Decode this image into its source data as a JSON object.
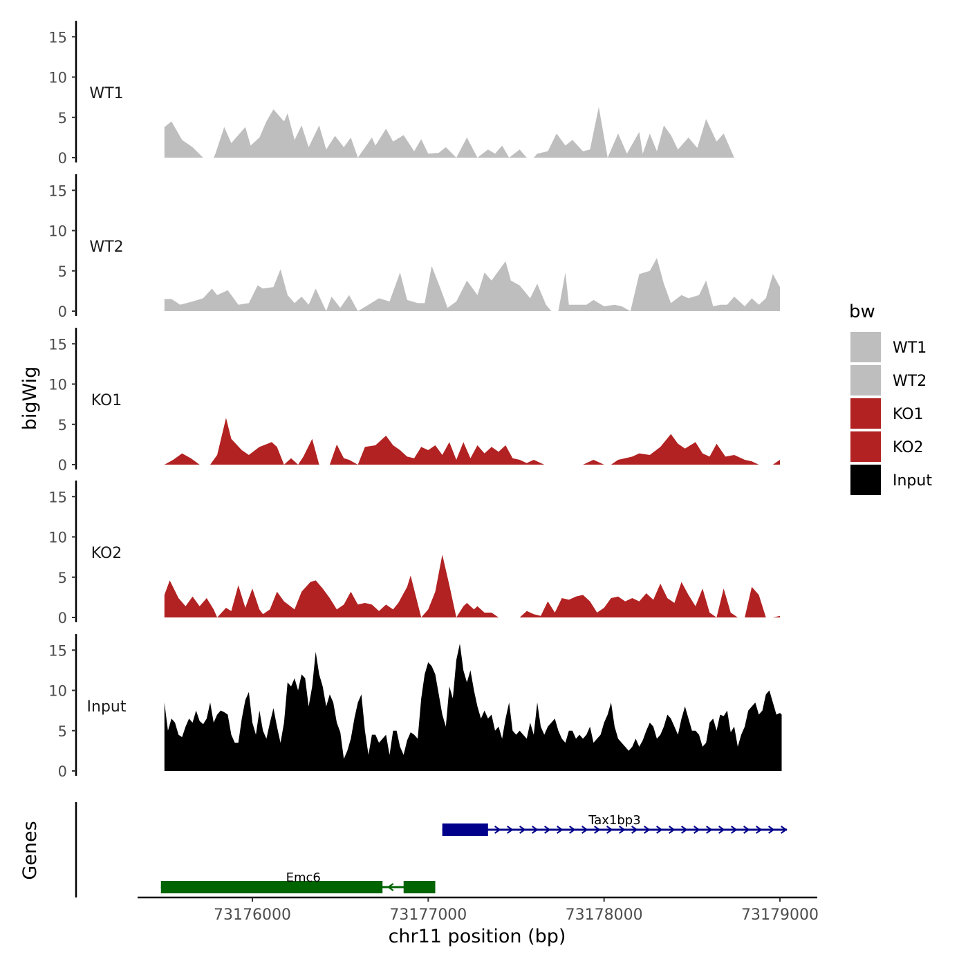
{
  "chart_data": {
    "type": "area",
    "description_axis": {
      "xlabel": "chr11 position (bp)",
      "xlim": [
        73175300,
        73179200
      ],
      "xticks": [
        73176000,
        73177000,
        73178000,
        73179000
      ],
      "xtick_labels": [
        "73176000",
        "73177000",
        "73178000",
        "73179000"
      ]
    },
    "ylabel": "bigWig",
    "ylim": [
      0,
      16.5
    ],
    "yticks": [
      0,
      5,
      10,
      15
    ],
    "ytick_labels": [
      "0",
      "5",
      "10",
      "15"
    ],
    "legend": {
      "title": "bw",
      "position": "right",
      "entries": [
        {
          "label": "WT1",
          "color": "#bebebe"
        },
        {
          "label": "WT2",
          "color": "#bebebe"
        },
        {
          "label": "KO1",
          "color": "#b22222"
        },
        {
          "label": "KO2",
          "color": "#b22222"
        },
        {
          "label": "Input",
          "color": "#000000"
        }
      ]
    },
    "series": [
      {
        "name": "WT1",
        "color": "#bebebe",
        "x": [
          73175500,
          73175540,
          73175600,
          73175660,
          73175720,
          73175780,
          73175790,
          73175840,
          73175880,
          73175960,
          73175990,
          73176040,
          73176080,
          73176120,
          73176180,
          73176200,
          73176240,
          73176280,
          73176320,
          73176380,
          73176420,
          73176470,
          73176520,
          73176560,
          73176600,
          73176680,
          73176700,
          73176760,
          73176800,
          73176860,
          73176920,
          73176960,
          73177000,
          73177060,
          73177100,
          73177160,
          73177220,
          73177280,
          73177340,
          73177380,
          73177420,
          73177460,
          73177520,
          73177560,
          73177600,
          73177620,
          73177680,
          73177730,
          73177780,
          73177820,
          73177880,
          73177920,
          73177970,
          73178020,
          73178080,
          73178130,
          73178200,
          73178220,
          73178260,
          73178300,
          73178340,
          73178380,
          73178420,
          73178480,
          73178530,
          73178580,
          73178640,
          73178680,
          73178740,
          73178800,
          73178860,
          73178900,
          73178960,
          73179000
        ],
        "values": [
          3.8,
          4.5,
          2.2,
          1.3,
          0,
          0,
          0.5,
          3.8,
          1.8,
          3.8,
          1.5,
          2.5,
          4.5,
          6.0,
          4.5,
          5.5,
          2.2,
          4.0,
          1.3,
          4.0,
          1.0,
          2.7,
          1.3,
          2.5,
          0,
          2.5,
          1.5,
          3.6,
          2.0,
          2.8,
          0.8,
          2.3,
          0.5,
          0.6,
          1.3,
          0,
          2.5,
          0,
          1.0,
          0.5,
          1.5,
          0,
          1.0,
          0,
          0,
          0.5,
          0.8,
          3.0,
          1.5,
          2.2,
          0.8,
          1.0,
          6.3,
          0,
          3.0,
          0.5,
          3.2,
          0.5,
          3.0,
          0.8,
          4.0,
          2.8,
          1.0,
          2.5,
          1.2,
          4.8,
          2.0,
          3.0,
          0,
          0,
          0,
          0,
          0,
          0
        ]
      },
      {
        "name": "WT2",
        "color": "#bebebe",
        "x": [
          73175500,
          73175540,
          73175590,
          73175660,
          73175720,
          73175770,
          73175800,
          73175860,
          73175920,
          73175980,
          73176030,
          73176060,
          73176120,
          73176160,
          73176200,
          73176240,
          73176280,
          73176320,
          73176360,
          73176420,
          73176450,
          73176500,
          73176550,
          73176600,
          73176660,
          73176720,
          73176780,
          73176840,
          73176880,
          73176940,
          73176980,
          73177020,
          73177070,
          73177110,
          73177160,
          73177220,
          73177280,
          73177320,
          73177360,
          73177440,
          73177470,
          73177520,
          73177580,
          73177620,
          73177670,
          73177700,
          73177740,
          73177780,
          73177800,
          73177860,
          73177900,
          73177940,
          73178000,
          73178060,
          73178100,
          73178150,
          73178200,
          73178260,
          73178300,
          73178340,
          73178380,
          73178440,
          73178480,
          73178540,
          73178580,
          73178620,
          73178660,
          73178700,
          73178740,
          73178800,
          73178840,
          73178880,
          73178920,
          73178960,
          73179000
        ],
        "values": [
          1.5,
          1.5,
          0.8,
          1.2,
          1.6,
          2.8,
          2.0,
          2.6,
          0.8,
          1.0,
          3.2,
          2.8,
          3.0,
          5.2,
          2.0,
          1.0,
          1.8,
          0.8,
          2.8,
          0,
          1.8,
          0.4,
          2.0,
          0,
          0.8,
          1.6,
          1.2,
          4.8,
          1.4,
          1.0,
          1.0,
          5.6,
          2.8,
          0.4,
          1.2,
          3.8,
          2.0,
          4.8,
          3.8,
          6.2,
          3.8,
          3.2,
          1.6,
          3.4,
          0.8,
          0,
          0,
          4.8,
          0.8,
          0.8,
          0.8,
          1.4,
          0.6,
          0.8,
          0.6,
          0,
          4.6,
          5.0,
          6.6,
          3.4,
          1.0,
          2.0,
          1.6,
          2.0,
          3.8,
          0.6,
          0.8,
          0.8,
          1.8,
          0.6,
          1.6,
          0.8,
          1.6,
          4.6,
          3.0
        ]
      },
      {
        "name": "KO1",
        "color": "#b22222",
        "x": [
          73175500,
          73175550,
          73175600,
          73175650,
          73175700,
          73175760,
          73175800,
          73175850,
          73175880,
          73175940,
          73175980,
          73176040,
          73176110,
          73176140,
          73176180,
          73176220,
          73176260,
          73176290,
          73176340,
          73176380,
          73176440,
          73176480,
          73176520,
          73176550,
          73176600,
          73176640,
          73176700,
          73176760,
          73176800,
          73176840,
          73176880,
          73176920,
          73176960,
          73177000,
          73177040,
          73177080,
          73177120,
          73177160,
          73177200,
          73177240,
          73177280,
          73177320,
          73177360,
          73177400,
          73177440,
          73177480,
          73177520,
          73177560,
          73177600,
          73177660,
          73177700,
          73177740,
          73177800,
          73177880,
          73177940,
          73178000,
          73178040,
          73178080,
          73178120,
          73178160,
          73178200,
          73178260,
          73178320,
          73178380,
          73178420,
          73178460,
          73178520,
          73178560,
          73178600,
          73178640,
          73178690,
          73178740,
          73178800,
          73178840,
          73178880,
          73178920,
          73178960,
          73179000
        ],
        "values": [
          0,
          0.6,
          1.4,
          0.8,
          0,
          0,
          1.2,
          5.8,
          3.2,
          1.8,
          1.2,
          2.2,
          2.8,
          2.2,
          0,
          0.8,
          0,
          1.0,
          3.2,
          0,
          0,
          2.5,
          0.8,
          0.6,
          0,
          2.2,
          2.4,
          3.6,
          2.4,
          1.8,
          1.0,
          0.8,
          2.2,
          1.8,
          2.4,
          1.2,
          2.8,
          0.6,
          2.8,
          0.8,
          2.4,
          1.4,
          2.2,
          1.6,
          2.4,
          0.8,
          0.6,
          0.2,
          0.6,
          0,
          0,
          0,
          0,
          0,
          0.6,
          0,
          0,
          0.6,
          0.8,
          1.0,
          1.4,
          1.2,
          2.2,
          3.8,
          2.6,
          2.0,
          2.8,
          1.4,
          1.0,
          2.6,
          1.0,
          1.2,
          0.6,
          0.4,
          0,
          0,
          0,
          0.6
        ]
      },
      {
        "name": "KO2",
        "color": "#b22222",
        "x": [
          73175500,
          73175530,
          73175580,
          73175620,
          73175660,
          73175700,
          73175740,
          73175780,
          73175800,
          73175850,
          73175880,
          73175920,
          73175960,
          73176000,
          73176040,
          73176060,
          73176100,
          73176140,
          73176180,
          73176240,
          73176280,
          73176330,
          73176360,
          73176400,
          73176440,
          73176480,
          73176520,
          73176560,
          73176600,
          73176640,
          73176680,
          73176720,
          73176760,
          73176800,
          73176830,
          73176880,
          73176900,
          73176960,
          73177000,
          73177040,
          73177080,
          73177120,
          73177160,
          73177200,
          73177220,
          73177260,
          73177280,
          73177320,
          73177360,
          73177400,
          73177440,
          73177480,
          73177520,
          73177560,
          73177600,
          73177640,
          73177680,
          73177720,
          73177760,
          73177800,
          73177840,
          73177880,
          73177920,
          73177960,
          73178000,
          73178040,
          73178080,
          73178120,
          73178160,
          73178200,
          73178240,
          73178280,
          73178320,
          73178360,
          73178400,
          73178440,
          73178480,
          73178520,
          73178560,
          73178600,
          73178640,
          73178680,
          73178720,
          73178760,
          73178800,
          73178840,
          73178880,
          73178920,
          73178960,
          73179000
        ],
        "values": [
          2.8,
          4.6,
          2.4,
          1.4,
          2.6,
          1.4,
          2.4,
          1.0,
          0,
          1.2,
          0.8,
          4.0,
          1.2,
          3.6,
          1.0,
          0.4,
          1.0,
          3.2,
          2.0,
          1.0,
          3.2,
          4.4,
          4.6,
          3.6,
          2.4,
          1.0,
          1.6,
          3.2,
          1.6,
          1.8,
          1.6,
          0.8,
          1.6,
          1.0,
          1.8,
          3.8,
          5.2,
          0,
          1.0,
          3.2,
          7.8,
          4.0,
          0,
          1.4,
          1.8,
          1.0,
          1.4,
          0.6,
          0.6,
          0,
          0,
          0,
          0,
          0.8,
          0.4,
          0.2,
          2.0,
          0.6,
          2.4,
          2.2,
          2.6,
          2.8,
          2.0,
          0.6,
          1.2,
          2.4,
          2.6,
          2.0,
          2.4,
          2.0,
          3.0,
          2.2,
          4.2,
          2.4,
          1.8,
          4.4,
          2.8,
          1.4,
          3.6,
          0.6,
          0,
          3.6,
          0.6,
          0,
          0,
          3.8,
          2.8,
          0,
          0,
          0.2
        ]
      },
      {
        "name": "Input",
        "color": "#000000",
        "x": [
          73175500,
          73175520,
          73175540,
          73175560,
          73175580,
          73175600,
          73175620,
          73175640,
          73175660,
          73175680,
          73175700,
          73175720,
          73175740,
          73175760,
          73175780,
          73175800,
          73175820,
          73175840,
          73175860,
          73175880,
          73175900,
          73175920,
          73175940,
          73175960,
          73175980,
          73176000,
          73176020,
          73176040,
          73176060,
          73176080,
          73176100,
          73176120,
          73176140,
          73176160,
          73176180,
          73176200,
          73176220,
          73176240,
          73176260,
          73176280,
          73176300,
          73176320,
          73176340,
          73176360,
          73176380,
          73176400,
          73176420,
          73176440,
          73176460,
          73176480,
          73176500,
          73176520,
          73176540,
          73176560,
          73176580,
          73176600,
          73176620,
          73176640,
          73176660,
          73176680,
          73176700,
          73176720,
          73176740,
          73176760,
          73176780,
          73176800,
          73176820,
          73176840,
          73176860,
          73176880,
          73176900,
          73176920,
          73176940,
          73176960,
          73176980,
          73177000,
          73177020,
          73177040,
          73177060,
          73177080,
          73177100,
          73177120,
          73177140,
          73177160,
          73177180,
          73177200,
          73177220,
          73177240,
          73177260,
          73177280,
          73177300,
          73177320,
          73177340,
          73177360,
          73177380,
          73177400,
          73177420,
          73177440,
          73177460,
          73177480,
          73177500,
          73177520,
          73177540,
          73177560,
          73177580,
          73177600,
          73177620,
          73177640,
          73177660,
          73177680,
          73177700,
          73177720,
          73177740,
          73177760,
          73177780,
          73177800,
          73177820,
          73177840,
          73177860,
          73177880,
          73177900,
          73177920,
          73177940,
          73177960,
          73177980,
          73178000,
          73178020,
          73178040,
          73178060,
          73178080,
          73178100,
          73178120,
          73178140,
          73178160,
          73178180,
          73178200,
          73178220,
          73178240,
          73178260,
          73178280,
          73178300,
          73178320,
          73178340,
          73178360,
          73178380,
          73178400,
          73178420,
          73178440,
          73178460,
          73178480,
          73178500,
          73178520,
          73178540,
          73178560,
          73178580,
          73178600,
          73178620,
          73178640,
          73178660,
          73178680,
          73178700,
          73178720,
          73178740,
          73178760,
          73178780,
          73178800,
          73178820,
          73178840,
          73178860,
          73178880,
          73178900,
          73178920,
          73178940,
          73178960,
          73178980,
          73179000,
          73179010
        ],
        "values": [
          8.5,
          5.0,
          6.5,
          6.0,
          4.5,
          4.2,
          5.5,
          6.5,
          6.0,
          7.5,
          6.2,
          5.8,
          6.5,
          8.5,
          6.0,
          7.0,
          7.5,
          7.3,
          7.0,
          4.5,
          3.5,
          3.5,
          6.5,
          8.8,
          9.8,
          6.0,
          4.5,
          7.5,
          5.0,
          4.0,
          6.0,
          7.8,
          5.5,
          3.5,
          6.0,
          11.0,
          10.5,
          11.5,
          10.0,
          12.0,
          11.5,
          8.0,
          10.5,
          14.8,
          12.0,
          10.5,
          8.0,
          9.5,
          8.5,
          6.0,
          4.8,
          1.5,
          2.5,
          4.0,
          6.5,
          8.5,
          9.5,
          5.0,
          2.0,
          4.5,
          4.5,
          3.5,
          4.0,
          4.5,
          2.0,
          5.0,
          5.0,
          3.0,
          2.0,
          3.8,
          4.8,
          4.5,
          4.0,
          9.0,
          12.0,
          13.5,
          13.0,
          12.0,
          9.5,
          7.0,
          5.5,
          10.5,
          9.0,
          13.8,
          15.8,
          12.5,
          11.0,
          12.5,
          10.0,
          8.0,
          6.5,
          7.5,
          6.5,
          7.0,
          5.0,
          5.5,
          4.0,
          6.5,
          8.5,
          5.0,
          4.5,
          5.0,
          4.5,
          4.0,
          6.0,
          4.5,
          8.5,
          5.5,
          4.5,
          5.5,
          6.0,
          6.5,
          5.0,
          4.0,
          3.5,
          5.0,
          5.0,
          4.0,
          4.5,
          4.0,
          4.5,
          5.5,
          3.5,
          4.0,
          4.5,
          6.0,
          7.0,
          8.5,
          5.5,
          4.0,
          3.5,
          3.0,
          2.5,
          3.0,
          4.0,
          3.0,
          3.8,
          5.0,
          6.0,
          5.5,
          4.0,
          4.5,
          5.5,
          7.0,
          6.5,
          5.5,
          4.5,
          6.5,
          8.0,
          6.5,
          5.0,
          5.0,
          4.5,
          3.0,
          3.5,
          6.0,
          6.5,
          5.0,
          7.0,
          6.8,
          7.5,
          4.8,
          5.5,
          3.0,
          4.5,
          5.5,
          7.5,
          8.0,
          8.5,
          7.0,
          7.5,
          9.5,
          10.0,
          8.5,
          7.0,
          7.2,
          7.0
        ]
      }
    ],
    "genes_track": {
      "label": "Genes",
      "genes": [
        {
          "name": "Tax1bp3",
          "strand": "+",
          "start": 73177080,
          "end": 73179040,
          "color": "#00008b",
          "exons": [
            [
              73177080,
              73177340
            ]
          ]
        },
        {
          "name": "Emc6",
          "strand": "-",
          "start": 73175480,
          "end": 73177040,
          "color": "#006400",
          "exons": [
            [
              73175480,
              73176740
            ],
            [
              73176860,
              73177040
            ]
          ]
        }
      ]
    }
  }
}
